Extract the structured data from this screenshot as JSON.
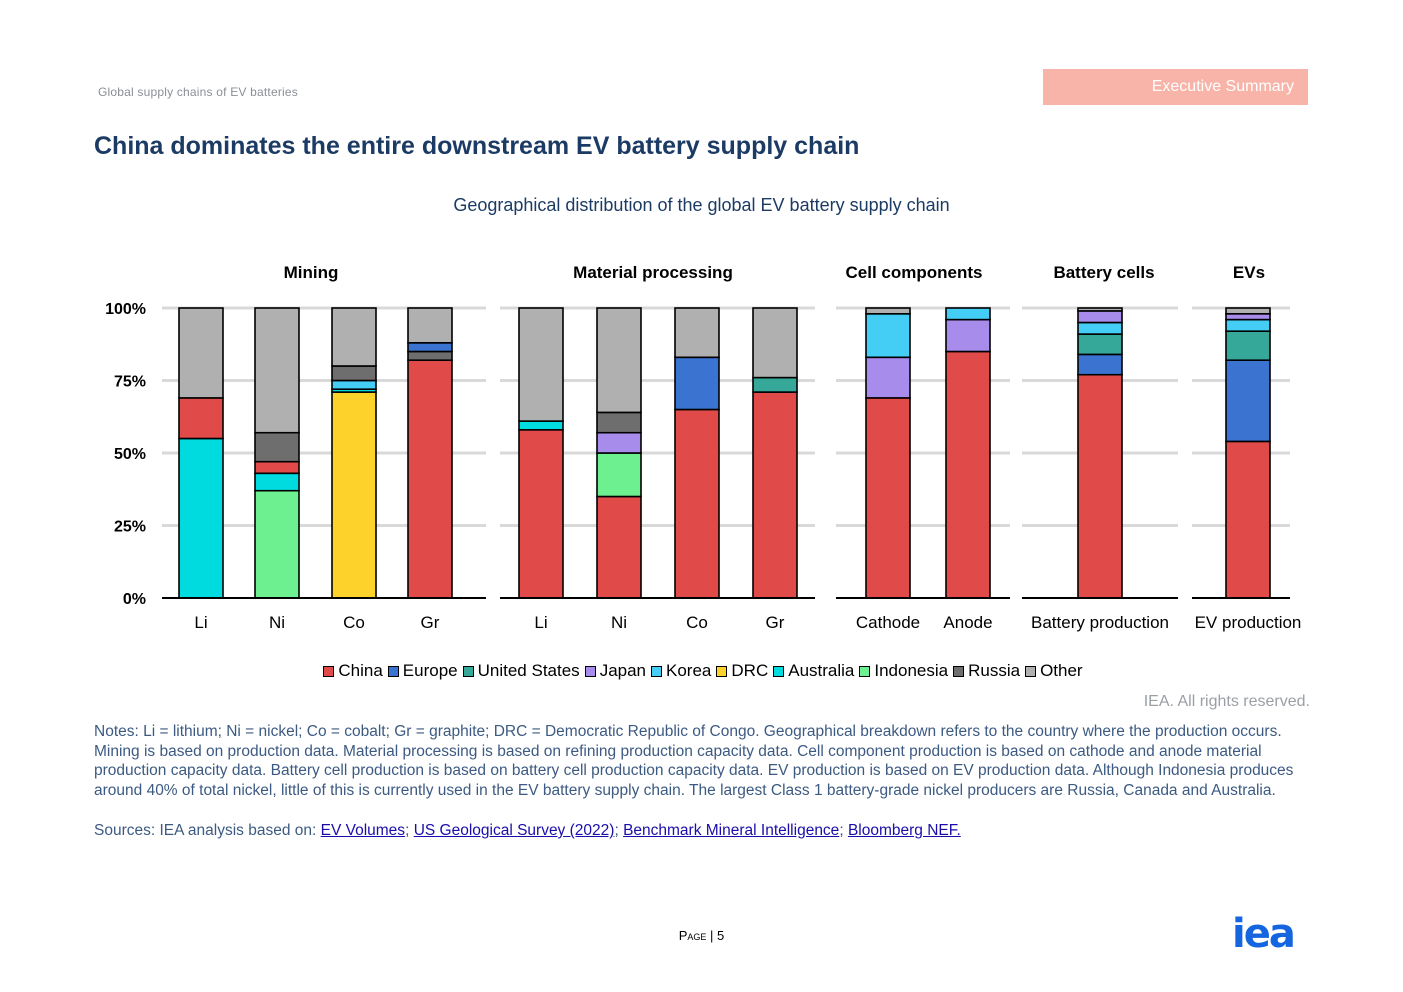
{
  "header": {
    "doc_title": "Global supply chains of EV batteries",
    "section_tab": "Executive Summary"
  },
  "page_title": "China dominates the entire downstream EV battery supply chain",
  "footer": {
    "rights": "IEA. All rights reserved.",
    "notes": "Notes: Li = lithium; Ni = nickel; Co = cobalt; Gr = graphite; DRC = Democratic Republic of Congo. Geographical breakdown refers to the country where the production occurs. Mining is based on production data. Material processing is based on refining production capacity data. Cell component production is based on cathode and anode material production capacity data. Battery cell production is based on battery cell production capacity data. EV production is based on EV production data. Although Indonesia produces around 40% of total nickel, little of this is currently used in the EV battery supply chain. The largest Class 1 battery-grade nickel producers are Russia, Canada and Australia.",
    "sources_prefix": "Sources: IEA analysis based on:",
    "sources": [
      "EV Volumes",
      "US Geological Survey (2022)",
      "Benchmark Mineral Intelligence",
      "Bloomberg NEF."
    ],
    "page_label": "Page",
    "page_number": "5",
    "logo_text": "iea"
  },
  "colors": {
    "China": "#e04b4a",
    "Europe": "#3b74d0",
    "United States": "#36a89a",
    "Japan": "#a88cec",
    "Korea": "#44cdf5",
    "DRC": "#fdd22b",
    "Australia": "#00dbe0",
    "Indonesia": "#6cf090",
    "Russia": "#6e6e6e",
    "Other": "#b0b0b0",
    "title": "#1c3b64",
    "tab": "#f8b4a8",
    "logo": "#1565e0"
  },
  "chart_data": {
    "type": "bar",
    "stacked": true,
    "title": "Geographical distribution of the global EV battery supply chain",
    "ylabel": "",
    "ylim": [
      0,
      100
    ],
    "yticks": [
      "0%",
      "25%",
      "50%",
      "75%",
      "100%"
    ],
    "grid": true,
    "legend_position": "bottom",
    "legend": [
      "China",
      "Europe",
      "United States",
      "Japan",
      "Korea",
      "DRC",
      "Australia",
      "Indonesia",
      "Russia",
      "Other"
    ],
    "groups": [
      {
        "name": "Mining",
        "bars": [
          {
            "label": "Li",
            "segments": [
              {
                "series": "Australia",
                "value": 55
              },
              {
                "series": "China",
                "value": 14
              },
              {
                "series": "Other",
                "value": 31
              }
            ]
          },
          {
            "label": "Ni",
            "segments": [
              {
                "series": "Indonesia",
                "value": 37
              },
              {
                "series": "Australia",
                "value": 6
              },
              {
                "series": "China",
                "value": 4
              },
              {
                "series": "Russia",
                "value": 10
              },
              {
                "series": "Other",
                "value": 43
              }
            ]
          },
          {
            "label": "Co",
            "segments": [
              {
                "series": "DRC",
                "value": 71
              },
              {
                "series": "Australia",
                "value": 1
              },
              {
                "series": "Korea",
                "value": 3
              },
              {
                "series": "Russia",
                "value": 5
              },
              {
                "series": "Other",
                "value": 20
              }
            ]
          },
          {
            "label": "Gr",
            "segments": [
              {
                "series": "China",
                "value": 82
              },
              {
                "series": "Russia",
                "value": 3
              },
              {
                "series": "Europe",
                "value": 3
              },
              {
                "series": "Other",
                "value": 12
              }
            ]
          }
        ]
      },
      {
        "name": "Material processing",
        "bars": [
          {
            "label": "Li",
            "segments": [
              {
                "series": "China",
                "value": 58
              },
              {
                "series": "Australia",
                "value": 3
              },
              {
                "series": "Other",
                "value": 39
              }
            ]
          },
          {
            "label": "Ni",
            "segments": [
              {
                "series": "China",
                "value": 35
              },
              {
                "series": "Indonesia",
                "value": 15
              },
              {
                "series": "Japan",
                "value": 7
              },
              {
                "series": "Russia",
                "value": 7
              },
              {
                "series": "Other",
                "value": 36
              }
            ]
          },
          {
            "label": "Co",
            "segments": [
              {
                "series": "China",
                "value": 65
              },
              {
                "series": "Europe",
                "value": 18
              },
              {
                "series": "Other",
                "value": 17
              }
            ]
          },
          {
            "label": "Gr",
            "segments": [
              {
                "series": "China",
                "value": 71
              },
              {
                "series": "United States",
                "value": 5
              },
              {
                "series": "Other",
                "value": 24
              }
            ]
          }
        ]
      },
      {
        "name": "Cell components",
        "bars": [
          {
            "label": "Cathode",
            "segments": [
              {
                "series": "China",
                "value": 69
              },
              {
                "series": "Japan",
                "value": 14
              },
              {
                "series": "Korea",
                "value": 15
              },
              {
                "series": "Other",
                "value": 2
              }
            ]
          },
          {
            "label": "Anode",
            "segments": [
              {
                "series": "China",
                "value": 85
              },
              {
                "series": "Japan",
                "value": 11
              },
              {
                "series": "Korea",
                "value": 4
              }
            ]
          }
        ]
      },
      {
        "name": "Battery cells",
        "bars": [
          {
            "label": "Battery production",
            "segments": [
              {
                "series": "China",
                "value": 77
              },
              {
                "series": "Europe",
                "value": 7
              },
              {
                "series": "United States",
                "value": 7
              },
              {
                "series": "Korea",
                "value": 4
              },
              {
                "series": "Japan",
                "value": 4
              },
              {
                "series": "Other",
                "value": 1
              }
            ]
          }
        ]
      },
      {
        "name": "EVs",
        "bars": [
          {
            "label": "EV production",
            "segments": [
              {
                "series": "China",
                "value": 54
              },
              {
                "series": "Europe",
                "value": 28
              },
              {
                "series": "United States",
                "value": 10
              },
              {
                "series": "Korea",
                "value": 4
              },
              {
                "series": "Japan",
                "value": 2
              },
              {
                "series": "Other",
                "value": 2
              }
            ]
          }
        ]
      }
    ]
  }
}
